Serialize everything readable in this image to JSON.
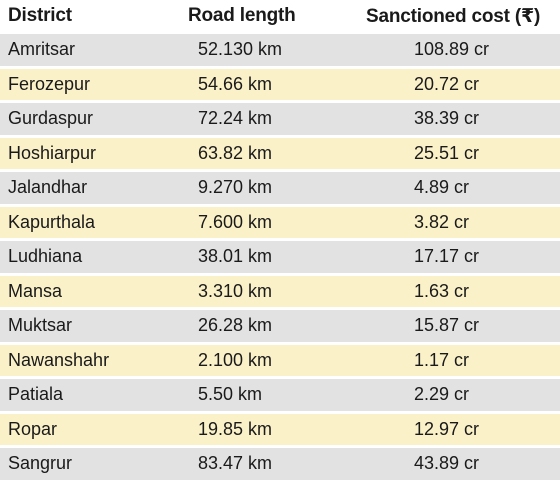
{
  "table": {
    "headers": {
      "district": "District",
      "road_length": "Road length",
      "sanctioned_cost": "Sanctioned cost (₹)"
    },
    "row_colors": {
      "grey": "#e2e2e2",
      "yellow": "#fbf1c9"
    },
    "rows": [
      {
        "district": "Amritsar",
        "road_length": "52.130 km",
        "sanctioned_cost": "108.89 cr",
        "shade": "grey"
      },
      {
        "district": "Ferozepur",
        "road_length": "54.66 km",
        "sanctioned_cost": "20.72 cr",
        "shade": "yellow"
      },
      {
        "district": "Gurdaspur",
        "road_length": "72.24 km",
        "sanctioned_cost": "38.39 cr",
        "shade": "grey"
      },
      {
        "district": "Hoshiarpur",
        "road_length": "63.82 km",
        "sanctioned_cost": "25.51 cr",
        "shade": "yellow"
      },
      {
        "district": "Jalandhar",
        "road_length": "9.270 km",
        "sanctioned_cost": "4.89 cr",
        "shade": "grey"
      },
      {
        "district": "Kapurthala",
        "road_length": "7.600 km",
        "sanctioned_cost": "3.82 cr",
        "shade": "yellow"
      },
      {
        "district": "Ludhiana",
        "road_length": "38.01 km",
        "sanctioned_cost": "17.17 cr",
        "shade": "grey"
      },
      {
        "district": "Mansa",
        "road_length": "3.310 km",
        "sanctioned_cost": "1.63 cr",
        "shade": "yellow"
      },
      {
        "district": "Muktsar",
        "road_length": "26.28 km",
        "sanctioned_cost": "15.87 cr",
        "shade": "grey"
      },
      {
        "district": "Nawanshahr",
        "road_length": "2.100 km",
        "sanctioned_cost": "1.17 cr",
        "shade": "yellow"
      },
      {
        "district": "Patiala",
        "road_length": "5.50 km",
        "sanctioned_cost": "2.29 cr",
        "shade": "grey"
      },
      {
        "district": "Ropar",
        "road_length": "19.85 km",
        "sanctioned_cost": "12.97 cr",
        "shade": "yellow"
      },
      {
        "district": "Sangrur",
        "road_length": "83.47 km",
        "sanctioned_cost": "43.89 cr",
        "shade": "grey"
      }
    ]
  }
}
